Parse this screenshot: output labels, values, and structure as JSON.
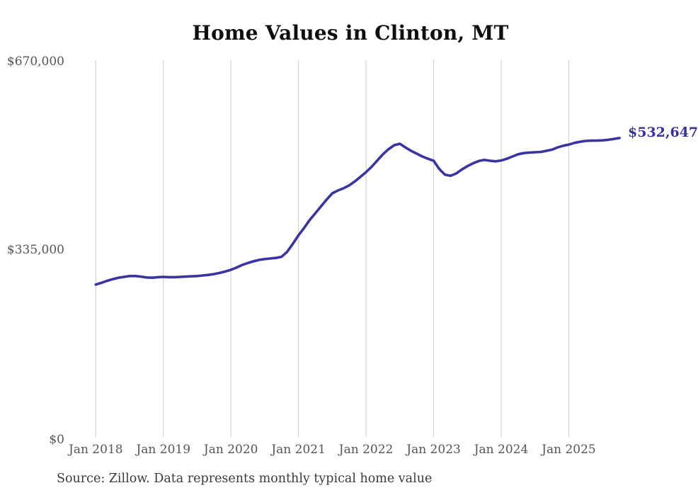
{
  "chart": {
    "title": "Home Values in Clinton, MT",
    "latest_value_label": "$532,647",
    "source": "Source: Zillow. Data represents monthly typical home value",
    "colors": {
      "line": "#3a34a3",
      "label": "#34309f",
      "grid": "#cccccc",
      "axis_text": "#555555",
      "title_text": "#0e0e0e",
      "source_text": "#3a3a3a"
    }
  },
  "chart_data": {
    "type": "line",
    "title": "Home Values in Clinton, MT",
    "xlabel": "",
    "ylabel": "",
    "ylim": [
      0,
      670000
    ],
    "grid": "vertical-only",
    "legend_position": "none",
    "x_tick_labels": [
      "Jan 2018",
      "Jan 2019",
      "Jan 2020",
      "Jan 2021",
      "Jan 2022",
      "Jan 2023",
      "Jan 2024",
      "Jan 2025"
    ],
    "y_tick_labels": [
      "$0",
      "$335,000",
      "$670,000"
    ],
    "y_tick_values": [
      0,
      335000,
      670000
    ],
    "end_label": {
      "text": "$532,647",
      "value": 532647
    },
    "series": [
      {
        "name": "Monthly typical home value",
        "x": [
          "2018-01",
          "2018-02",
          "2018-03",
          "2018-04",
          "2018-05",
          "2018-06",
          "2018-07",
          "2018-08",
          "2018-09",
          "2018-10",
          "2018-11",
          "2018-12",
          "2019-01",
          "2019-02",
          "2019-03",
          "2019-04",
          "2019-05",
          "2019-06",
          "2019-07",
          "2019-08",
          "2019-09",
          "2019-10",
          "2019-11",
          "2019-12",
          "2020-01",
          "2020-02",
          "2020-03",
          "2020-04",
          "2020-05",
          "2020-06",
          "2020-07",
          "2020-08",
          "2020-09",
          "2020-10",
          "2020-11",
          "2020-12",
          "2021-01",
          "2021-02",
          "2021-03",
          "2021-04",
          "2021-05",
          "2021-06",
          "2021-07",
          "2021-08",
          "2021-09",
          "2021-10",
          "2021-11",
          "2021-12",
          "2022-01",
          "2022-02",
          "2022-03",
          "2022-04",
          "2022-05",
          "2022-06",
          "2022-07",
          "2022-08",
          "2022-09",
          "2022-10",
          "2022-11",
          "2022-12",
          "2023-01",
          "2023-02",
          "2023-03",
          "2023-04",
          "2023-05",
          "2023-06",
          "2023-07",
          "2023-08",
          "2023-09",
          "2023-10",
          "2023-11",
          "2023-12",
          "2024-01",
          "2024-02",
          "2024-03",
          "2024-04",
          "2024-05",
          "2024-06",
          "2024-07",
          "2024-08",
          "2024-09",
          "2024-10",
          "2024-11",
          "2024-12",
          "2025-01",
          "2025-02",
          "2025-03",
          "2025-04",
          "2025-05",
          "2025-06",
          "2025-07",
          "2025-08",
          "2025-09",
          "2025-10"
        ],
        "values": [
          274000,
          277000,
          280500,
          283500,
          286000,
          287500,
          289000,
          289000,
          288000,
          286500,
          286000,
          287000,
          287500,
          287000,
          287000,
          287500,
          288000,
          288500,
          289000,
          290000,
          291000,
          292500,
          294500,
          297000,
          300000,
          304000,
          308500,
          312000,
          315000,
          317500,
          319000,
          320000,
          321000,
          323000,
          332000,
          346000,
          361000,
          374000,
          388000,
          400000,
          412000,
          424000,
          435000,
          440000,
          444000,
          449000,
          456000,
          464000,
          472500,
          482000,
          493000,
          504000,
          513000,
          520000,
          522500,
          516000,
          510000,
          505000,
          500000,
          496000,
          492500,
          478000,
          468000,
          466000,
          470000,
          477000,
          483000,
          488000,
          492000,
          494000,
          492500,
          491500,
          493000,
          496000,
          500000,
          504000,
          506000,
          507000,
          507500,
          508000,
          510000,
          512000,
          516000,
          519000,
          521000,
          524000,
          526000,
          527500,
          528000,
          528000,
          528500,
          529500,
          531000,
          532647
        ]
      }
    ]
  }
}
